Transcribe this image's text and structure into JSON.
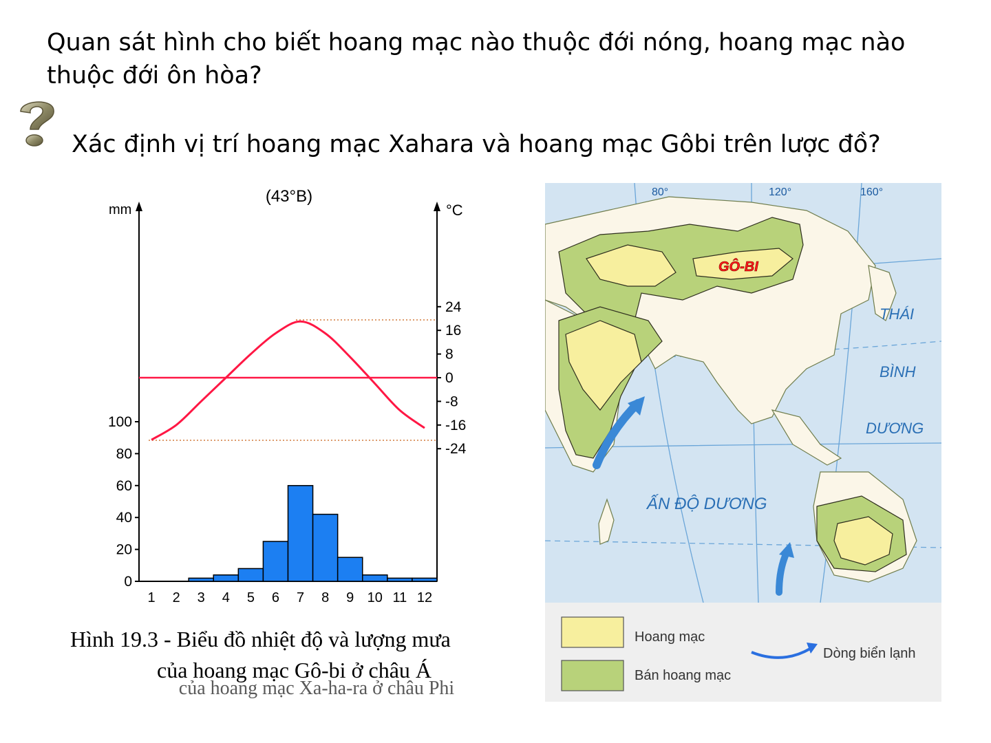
{
  "questions": {
    "q1": "Quan sát hình cho biết hoang mạc nào thuộc đới nóng, hoang mạc nào thuộc đới ôn hòa?",
    "q2": "Xác định vị trí hoang mạc Xahara và hoang mạc Gôbi trên lược đồ?"
  },
  "icon": {
    "name": "question-mark-icon",
    "color": "#8a8a6a"
  },
  "chart": {
    "latitude": "(43°B)",
    "left_unit": "mm",
    "right_unit": "°C",
    "caption_line1": "Hình 19.3 - Biểu đồ nhiệt độ và lượng mưa",
    "caption_line2": "của hoang mạc Gô-bi ở châu Á",
    "caption_ghost": "của hoang mạc Xa-ha-ra ở châu Phi"
  },
  "chart_data": {
    "type": "bar",
    "categories": [
      "1",
      "2",
      "3",
      "4",
      "5",
      "6",
      "7",
      "8",
      "9",
      "10",
      "11",
      "12"
    ],
    "series": [
      {
        "name": "",
        "kind": "bar",
        "values": [
          0,
          0,
          2,
          4,
          8,
          25,
          60,
          42,
          15,
          4,
          2,
          2
        ]
      },
      {
        "name": "",
        "kind": "line",
        "values": [
          -21,
          -16,
          -8,
          0,
          8,
          15,
          19,
          15,
          7,
          -2,
          -11,
          -17
        ]
      }
    ],
    "precip_ticks": [
      "0",
      "20",
      "40",
      "60",
      "80",
      "100"
    ],
    "temp_ticks": [
      "24",
      "16",
      "8",
      "0",
      "-8",
      "-16",
      "-24"
    ],
    "temp_range": [
      -24,
      24
    ],
    "precip_range": [
      0,
      100
    ],
    "colors": {
      "bars": "#1c7ff2",
      "line": "#ff1744"
    }
  },
  "map": {
    "lon_labels": [
      "80°",
      "120°",
      "160°"
    ],
    "labels": {
      "gobi": "GÔ-BI",
      "pacific1": "THÁI",
      "pacific2": "BÌNH",
      "pacific3": "DƯƠNG",
      "indian": "ẤN ĐỘ DƯƠNG"
    },
    "legend": {
      "desert": "Hoang mạc",
      "semi_desert": "Bán hoang mạc",
      "cold_current": "Dòng biển lạnh"
    },
    "colors": {
      "sea": "#d3e4f2",
      "desert": "#f7ef9e",
      "semi": "#b8d27a",
      "land": "#fbf6e8"
    }
  }
}
